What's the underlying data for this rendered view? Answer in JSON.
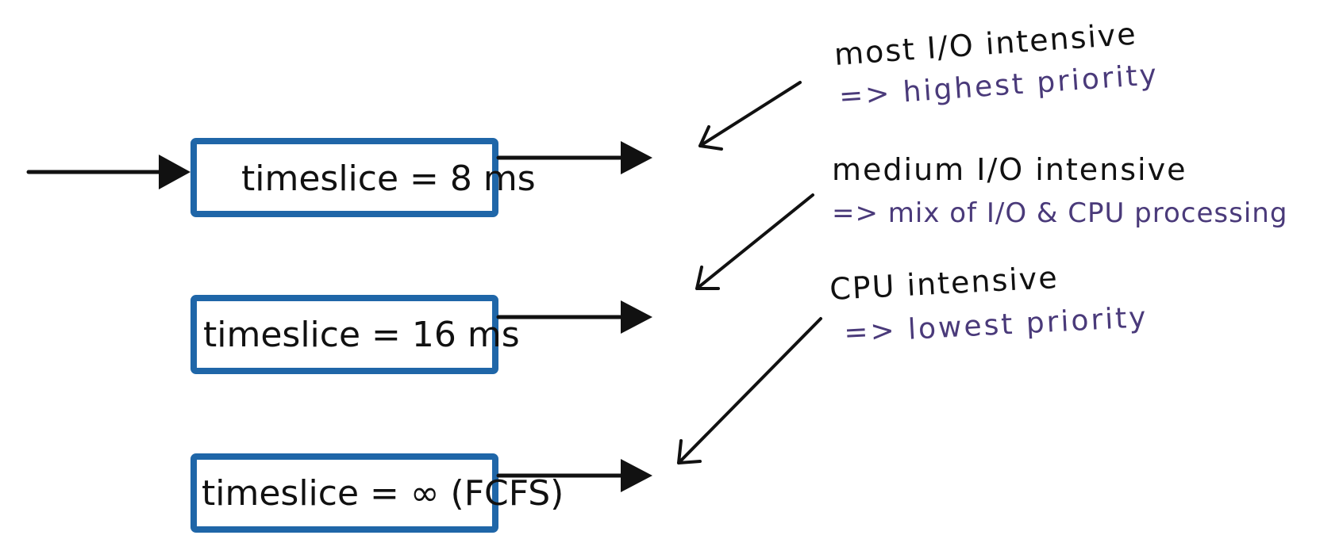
{
  "queues": [
    {
      "label": "timeslice = 8 ms"
    },
    {
      "label": "timeslice = 16 ms"
    },
    {
      "label": "timeslice = ∞ (FCFS)"
    }
  ],
  "notes": [
    {
      "heading": "most I/O intensive",
      "detail": "=> highest priority"
    },
    {
      "heading": "medium I/O intensive",
      "detail": "=> mix of I/O & CPU processing"
    },
    {
      "heading": "CPU intensive",
      "detail": "=> lowest priority"
    }
  ],
  "colors": {
    "box_border": "#1f66a8",
    "ink": "#111111",
    "note_detail": "#4a3a7a"
  }
}
